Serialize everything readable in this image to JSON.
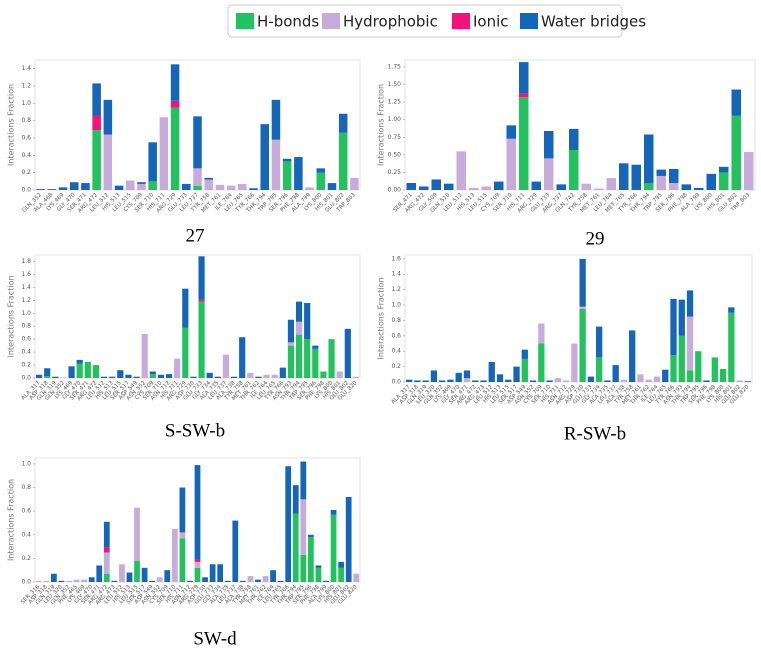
{
  "legend": [
    {
      "name": "H-bonds",
      "color": "#22c35e"
    },
    {
      "name": "Hydrophobic",
      "color": "#c7acdb"
    },
    {
      "name": "Ionic",
      "color": "#f0147c"
    },
    {
      "name": "Water bridges",
      "color": "#1565b8"
    }
  ],
  "chart_data": [
    {
      "type": "bar",
      "stacked": true,
      "caption": "27",
      "ylabel": "Interactions Fraction",
      "ylim": [
        0,
        1.5
      ],
      "yticks": [
        {
          "value": 0,
          "label": "0.0"
        },
        0.2,
        0.4,
        0.6,
        0.8,
        {
          "value": 1,
          "label": "1.0"
        },
        1.2,
        1.4
      ],
      "categories": [
        "GLN_352",
        "ALA_468",
        "LYS_469",
        "GLY_470",
        "SER_471",
        "ARG_472",
        "LEU_512",
        "HIS_513",
        "LEU_515",
        "CYS_709",
        "SER_710",
        "HIS_711",
        "ARG_729",
        "GLU_733",
        "LEU_737",
        "TYR_758",
        "MET_761",
        "ILE_764",
        "LEU_765",
        "TYR_766",
        "THR_794",
        "TRP_795",
        "SER_796",
        "PHE_798",
        "ALA_799",
        "LYS_800",
        "HIS_801",
        "GLU_802",
        "TRP_803"
      ],
      "series": [
        {
          "values": [
            0,
            0,
            0,
            0,
            0,
            0.69,
            0,
            0,
            0,
            0,
            0.1,
            0,
            0.95,
            0,
            0.05,
            0,
            0,
            0,
            0,
            0,
            0,
            0,
            0.33,
            0,
            0,
            0.2,
            0,
            0.66,
            0
          ]
        },
        {
          "values": [
            0,
            0,
            0,
            0,
            0,
            0,
            0.64,
            0,
            0.11,
            0.07,
            0,
            0.84,
            0,
            0,
            0.2,
            0.12,
            0.06,
            0.05,
            0.07,
            0,
            0,
            0.58,
            0,
            0,
            0.03,
            0,
            0,
            0,
            0.14
          ]
        },
        {
          "values": [
            0,
            0,
            0,
            0,
            0,
            0.17,
            0,
            0,
            0,
            0,
            0,
            0,
            0.08,
            0,
            0,
            0,
            0,
            0,
            0,
            0,
            0,
            0,
            0,
            0,
            0,
            0,
            0,
            0,
            0
          ]
        },
        {
          "values": [
            0.01,
            0.01,
            0.03,
            0.09,
            0.08,
            0.37,
            0.4,
            0.05,
            0,
            0.02,
            0.45,
            0,
            0.42,
            0.07,
            0.6,
            0.02,
            0,
            0,
            0,
            0.02,
            0.76,
            0.46,
            0.03,
            0.38,
            0,
            0.05,
            0.08,
            0.22,
            0
          ]
        }
      ]
    },
    {
      "type": "bar",
      "stacked": true,
      "caption": "29",
      "ylabel": "Interactions Fraction",
      "ylim": [
        0,
        1.85
      ],
      "yticks": [
        {
          "value": 0,
          "label": "0.00"
        },
        0.25,
        {
          "value": 0.5,
          "label": "0.50"
        },
        0.75,
        {
          "value": 1,
          "label": "1.00"
        },
        1.25,
        {
          "value": 1.5,
          "label": "1.50"
        },
        1.75
      ],
      "categories": [
        "SER_471",
        "ARG_472",
        "GLY_509",
        "GLN_510",
        "LEU_512",
        "HIS_513",
        "LEU_515",
        "CYS_709",
        "SER_710",
        "HIS_711",
        "ARG_729",
        "GLU_733",
        "ARG_737",
        "GLN_742",
        "TYR_758",
        "MET_761",
        "LEU_764",
        "MET_765",
        "TYR_766",
        "THR_794",
        "TRP_795",
        "SER_796",
        "PHE_798",
        "ALA_799",
        "LYS_800",
        "HIS_801",
        "GLU_802",
        "TRP_803"
      ],
      "series": [
        {
          "values": [
            0,
            0,
            0,
            0,
            0,
            0,
            0,
            0,
            0,
            1.32,
            0,
            0,
            0,
            0.57,
            0,
            0,
            0,
            0,
            0,
            0.1,
            0,
            0,
            0,
            0,
            0,
            0.25,
            1.06,
            0
          ]
        },
        {
          "values": [
            0,
            0,
            0,
            0,
            0.55,
            0.03,
            0.05,
            0,
            0.73,
            0,
            0,
            0.45,
            0,
            0,
            0.09,
            0.02,
            0.17,
            0,
            0,
            0,
            0.2,
            0.1,
            0,
            0,
            0,
            0,
            0,
            0.54
          ]
        },
        {
          "values": [
            0,
            0,
            0,
            0,
            0,
            0,
            0,
            0,
            0,
            0.05,
            0,
            0,
            0,
            0,
            0,
            0,
            0,
            0,
            0,
            0,
            0,
            0,
            0,
            0,
            0,
            0,
            0,
            0
          ]
        },
        {
          "values": [
            0.1,
            0.05,
            0.15,
            0.09,
            0,
            0,
            0,
            0.12,
            0.19,
            0.45,
            0.12,
            0.39,
            0.08,
            0.3,
            0,
            0,
            0,
            0.38,
            0.36,
            0.69,
            0.09,
            0.2,
            0.08,
            0.03,
            0.23,
            0.08,
            0.37,
            0
          ]
        }
      ]
    },
    {
      "type": "bar",
      "stacked": true,
      "caption": "S-SW-b",
      "ylabel": "Interactions Fraction",
      "ylim": [
        0,
        1.9
      ],
      "yticks": [
        {
          "value": 0,
          "label": "0.0"
        },
        0.2,
        0.4,
        0.6,
        0.8,
        {
          "value": 1,
          "label": "1.0"
        },
        1.2,
        1.4,
        1.6,
        1.8
      ],
      "categories": [
        "ALA_317",
        "ASP_318",
        "GLN_319",
        "GLN_352",
        "LYS_469",
        "GLY_470",
        "SER_471",
        "ARG_472",
        "LEU_512",
        "HIS_513",
        "LEU_515",
        "SER_517",
        "ASP_549",
        "ASN_552",
        "CYS_709",
        "SER_710",
        "ASN_712",
        "HIS_711",
        "ARG_729",
        "ASP_730",
        "GLU_733",
        "GLY_734",
        "ALA_735",
        "LEU_737",
        "ALA_738",
        "TYR_758",
        "MET_761",
        "THR_762",
        "ILE_764",
        "LEU_765",
        "TYR_766",
        "ASN_793",
        "THR_794",
        "TRP_795",
        "SER_796",
        "PHE_798",
        "LYS_800",
        "HIS_801",
        "GLU_802",
        "GLU_820"
      ],
      "series": [
        {
          "values": [
            0,
            0.03,
            0,
            0,
            0,
            0.22,
            0.25,
            0.2,
            0,
            0,
            0,
            0,
            0,
            0,
            0.06,
            0,
            0,
            0,
            0.78,
            0,
            1.18,
            0,
            0,
            0,
            0,
            0,
            0,
            0,
            0,
            0,
            0,
            0.5,
            0.67,
            0.6,
            0.45,
            0.1,
            0.6,
            0,
            0,
            0
          ]
        },
        {
          "values": [
            0,
            0,
            0,
            0.01,
            0,
            0,
            0,
            0,
            0,
            0,
            0,
            0,
            0,
            0.68,
            0,
            0,
            0,
            0.3,
            0,
            0,
            0,
            0,
            0,
            0.36,
            0,
            0,
            0.08,
            0,
            0.05,
            0.05,
            0,
            0.05,
            0.2,
            0,
            0,
            0,
            0,
            0.1,
            0,
            0.02
          ]
        },
        {
          "values": [
            0,
            0,
            0,
            0,
            0,
            0,
            0,
            0,
            0,
            0,
            0,
            0,
            0,
            0,
            0,
            0,
            0,
            0,
            0,
            0,
            0.03,
            0,
            0,
            0,
            0,
            0,
            0,
            0,
            0,
            0,
            0,
            0,
            0,
            0,
            0,
            0,
            0,
            0,
            0,
            0
          ]
        },
        {
          "values": [
            0.05,
            0.12,
            0.02,
            0,
            0.18,
            0.06,
            0,
            0,
            0.02,
            0.02,
            0.12,
            0.05,
            0.02,
            0,
            0.04,
            0.05,
            0.06,
            0,
            0.6,
            0.02,
            0.67,
            0.08,
            0.02,
            0,
            0.02,
            0.63,
            0,
            0.02,
            0,
            0,
            0.16,
            0.35,
            0.31,
            0.56,
            0.05,
            0,
            0,
            0,
            0.76,
            0
          ]
        }
      ]
    },
    {
      "type": "bar",
      "stacked": true,
      "caption": "R-SW-b",
      "ylabel": "Interactions Fraction",
      "ylim": [
        0,
        1.65
      ],
      "yticks": [
        {
          "value": 0,
          "label": "0.0"
        },
        0.2,
        0.4,
        0.6,
        0.8,
        {
          "value": 1,
          "label": "1.0"
        },
        1.2,
        1.4,
        1.6
      ],
      "categories": [
        "ALA_317",
        "ASP_318",
        "GLN_319",
        "LEU_320",
        "GLN_352",
        "LYS_469",
        "GLY_470",
        "SER_471",
        "ARG_472",
        "ARG_473",
        "LEU_512",
        "HIS_513",
        "LEU_515",
        "SER_517",
        "ASP_549",
        "ASN_552",
        "CYS_709",
        "SER_710",
        "HIS_711",
        "ASN_712",
        "ARG_729",
        "ASP_730",
        "GLU_733",
        "GLY_734",
        "ALA_735",
        "LEU_737",
        "ALA_738",
        "TYR_758",
        "MET_761",
        "THR_762",
        "ILE_764",
        "LEU_765",
        "TYR_766",
        "ASN_793",
        "THR_794",
        "TRP_795",
        "SER_796",
        "PHE_798",
        "LYS_800",
        "HIS_801",
        "GLU_802",
        "GLU_820"
      ],
      "series": [
        {
          "values": [
            0,
            0,
            0,
            0,
            0,
            0,
            0,
            0,
            0,
            0,
            0,
            0,
            0,
            0,
            0.3,
            0,
            0.5,
            0,
            0,
            0,
            0,
            0.95,
            0,
            0.32,
            0,
            0,
            0,
            0,
            0,
            0,
            0,
            0,
            0.35,
            0.6,
            0.15,
            0.4,
            0,
            0.32,
            0.17,
            0.9,
            0,
            0
          ]
        },
        {
          "values": [
            0,
            0,
            0,
            0,
            0,
            0,
            0,
            0.05,
            0,
            0,
            0,
            0,
            0,
            0,
            0,
            0,
            0.26,
            0,
            0.05,
            0.02,
            0.5,
            0.03,
            0,
            0,
            0,
            0,
            0.03,
            0,
            0.1,
            0.03,
            0.07,
            0,
            0,
            0,
            0.7,
            0,
            0,
            0,
            0,
            0,
            0.02,
            0
          ]
        },
        {
          "values": [
            0,
            0,
            0,
            0,
            0,
            0,
            0,
            0,
            0,
            0,
            0,
            0,
            0,
            0,
            0,
            0,
            0,
            0,
            0,
            0,
            0,
            0,
            0,
            0,
            0,
            0,
            0,
            0,
            0,
            0,
            0,
            0,
            0,
            0,
            0,
            0,
            0,
            0,
            0,
            0,
            0,
            0
          ]
        },
        {
          "values": [
            0.03,
            0.02,
            0.02,
            0.15,
            0.02,
            0.03,
            0.12,
            0.1,
            0.02,
            0.02,
            0.26,
            0.1,
            0.03,
            0.2,
            0.12,
            0.02,
            0,
            0.02,
            0,
            0,
            0,
            0.62,
            0.07,
            0.4,
            0.02,
            0.22,
            0,
            0.67,
            0,
            0,
            0,
            0.16,
            0.73,
            0.47,
            0.34,
            0,
            0.02,
            0,
            0,
            0.07,
            0,
            0.01
          ]
        }
      ]
    },
    {
      "type": "bar",
      "stacked": true,
      "caption": "SW-d",
      "ylabel": "Interactions Fraction",
      "ylim": [
        0,
        1.05
      ],
      "yticks": [
        {
          "value": 0,
          "label": "0.0"
        },
        0.2,
        0.4,
        0.6,
        0.8,
        {
          "value": 1,
          "label": "1.0"
        }
      ],
      "categories": [
        "SER_316",
        "ASP_318",
        "GLN_319",
        "LEU_320",
        "GLN_352",
        "PHE_465",
        "LYS_469",
        "GLY_470",
        "SER_471",
        "ARG_472",
        "ARG_473",
        "LEU_512",
        "HIS_513",
        "LEU_515",
        "SER_517",
        "ASP_549",
        "ASN_552",
        "CYS_709",
        "SER_710",
        "HIS_711",
        "ASN_712",
        "ARG_729",
        "ASP_730",
        "GLU_733",
        "GLY_734",
        "ALA_735",
        "LEU_737",
        "ALA_738",
        "TYR_758",
        "MET_761",
        "THR_762",
        "ILE_764",
        "LEU_765",
        "TYR_766",
        "THR_794",
        "TRP_795",
        "SER_796",
        "PHE_798",
        "ALA_799",
        "LYS_800",
        "HIS_801",
        "GLU_802",
        "GLU_820"
      ],
      "series": [
        {
          "values": [
            0,
            0,
            0,
            0,
            0,
            0,
            0,
            0,
            0,
            0.07,
            0,
            0,
            0,
            0.18,
            0,
            0,
            0,
            0,
            0,
            0.37,
            0,
            0.12,
            0,
            0,
            0,
            0,
            0,
            0,
            0,
            0,
            0,
            0,
            0,
            0,
            0.58,
            0.23,
            0.38,
            0.12,
            0,
            0.57,
            0.12,
            0,
            0
          ]
        },
        {
          "values": [
            0.01,
            0.01,
            0,
            0,
            0.01,
            0.02,
            0.02,
            0,
            0,
            0.18,
            0,
            0.15,
            0,
            0.45,
            0,
            0,
            0.04,
            0,
            0.45,
            0.05,
            0,
            0.05,
            0,
            0,
            0,
            0,
            0,
            0,
            0.05,
            0,
            0.05,
            0,
            0,
            0,
            0,
            0.47,
            0,
            0,
            0,
            0,
            0,
            0,
            0.07
          ]
        },
        {
          "values": [
            0,
            0,
            0,
            0,
            0,
            0,
            0,
            0,
            0,
            0.04,
            0,
            0,
            0,
            0,
            0,
            0,
            0,
            0,
            0,
            0,
            0,
            0.02,
            0,
            0,
            0,
            0,
            0,
            0,
            0,
            0,
            0,
            0,
            0,
            0,
            0,
            0,
            0,
            0,
            0,
            0,
            0,
            0,
            0
          ]
        },
        {
          "values": [
            0,
            0,
            0.07,
            0.01,
            0,
            0,
            0,
            0.04,
            0.14,
            0.22,
            0.01,
            0,
            0.08,
            0,
            0.12,
            0.01,
            0,
            0.1,
            0,
            0.38,
            0.01,
            0.8,
            0.04,
            0.15,
            0.15,
            0.01,
            0.52,
            0.01,
            0,
            0.02,
            0,
            0.1,
            0.01,
            0.98,
            0.24,
            0.32,
            0.02,
            0.02,
            0.01,
            0.04,
            0.05,
            0.72,
            0
          ]
        }
      ]
    }
  ]
}
